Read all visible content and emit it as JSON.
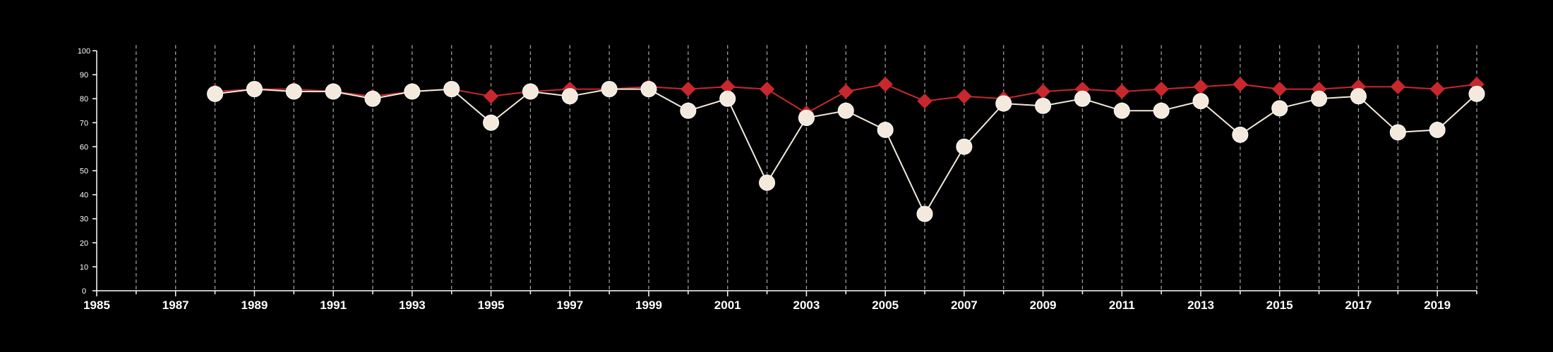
{
  "chart_data": {
    "type": "line",
    "title": "",
    "xlabel": "",
    "ylabel": "",
    "xlim": [
      1985,
      2020
    ],
    "ylim": [
      0,
      100
    ],
    "x_ticks": [
      1985,
      1987,
      1989,
      1991,
      1993,
      1995,
      1997,
      1999,
      2001,
      2003,
      2005,
      2007,
      2009,
      2011,
      2013,
      2015,
      2017,
      2019
    ],
    "y_ticks": [
      0,
      10,
      20,
      30,
      40,
      50,
      60,
      70,
      80,
      90,
      100
    ],
    "grid": "vertical dashed, every year",
    "legend": "none",
    "x": [
      1988,
      1989,
      1990,
      1991,
      1992,
      1993,
      1994,
      1995,
      1996,
      1997,
      1998,
      1999,
      2000,
      2001,
      2002,
      2003,
      2004,
      2005,
      2006,
      2007,
      2008,
      2009,
      2010,
      2011,
      2012,
      2013,
      2014,
      2015,
      2016,
      2017,
      2018,
      2019,
      2020
    ],
    "series": [
      {
        "marker": "diamond",
        "color": "#c8282d",
        "values": [
          83,
          84,
          84,
          83,
          81,
          83,
          84,
          81,
          83,
          84,
          84,
          85,
          84,
          85,
          84,
          74,
          83,
          86,
          79,
          81,
          80,
          83,
          84,
          83,
          84,
          85,
          86,
          84,
          84,
          85,
          85,
          84,
          86
        ]
      },
      {
        "marker": "circle",
        "color": "#f3e9dc",
        "values": [
          82,
          84,
          83,
          83,
          80,
          83,
          84,
          70,
          83,
          81,
          84,
          84,
          75,
          80,
          45,
          72,
          75,
          67,
          32,
          60,
          78,
          77,
          80,
          75,
          75,
          79,
          65,
          76,
          80,
          81,
          66,
          67,
          82
        ]
      }
    ]
  },
  "colors": {
    "background": "#000000",
    "axis": "#ffffff",
    "grid": "#9a9a9a"
  }
}
